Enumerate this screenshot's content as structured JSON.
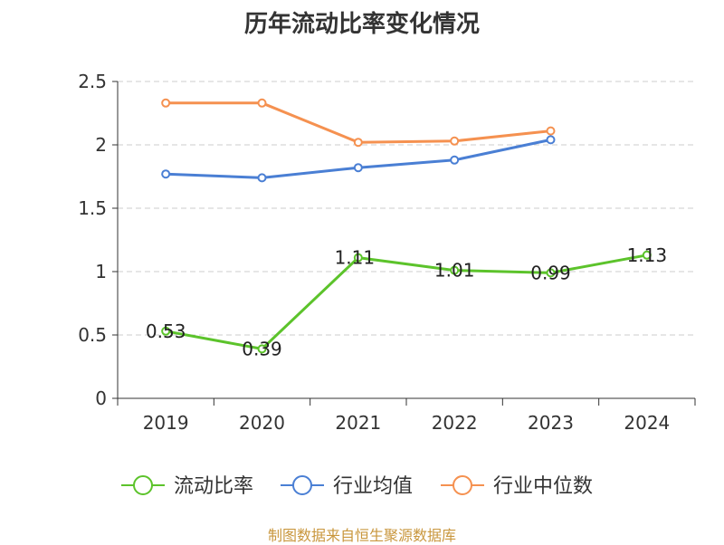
{
  "chart_data": {
    "type": "line",
    "title": "历年流动比率变化情况",
    "categories": [
      "2019",
      "2020",
      "2021",
      "2022",
      "2023",
      "2024"
    ],
    "ylim": [
      0,
      2.5
    ],
    "yticks": [
      "0",
      "0.5",
      "1",
      "1.5",
      "2",
      "2.5"
    ],
    "ytick_values": [
      0,
      0.5,
      1,
      1.5,
      2,
      2.5
    ],
    "grid": true,
    "legend_position": "bottom",
    "series": [
      {
        "name": "流动比率",
        "color": "#5cc32b",
        "values": [
          0.53,
          0.39,
          1.11,
          1.01,
          0.99,
          1.13
        ],
        "labels": [
          "0.53",
          "0.39",
          "1.11",
          "1.01",
          "0.99",
          "1.13"
        ]
      },
      {
        "name": "行业均值",
        "color": "#4a7fd4",
        "values": [
          1.77,
          1.74,
          1.82,
          1.88,
          2.04,
          null
        ]
      },
      {
        "name": "行业中位数",
        "color": "#f59150",
        "values": [
          2.33,
          2.33,
          2.02,
          2.03,
          2.11,
          null
        ]
      }
    ]
  },
  "footer": "制图数据来自恒生聚源数据库"
}
